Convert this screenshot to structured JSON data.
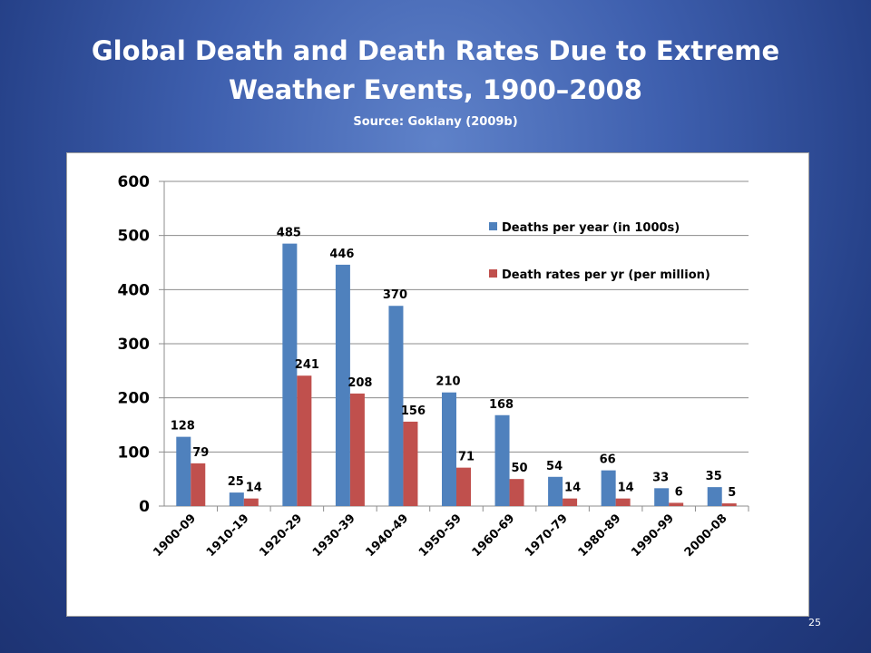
{
  "slide": {
    "title_line1": "Global Death and Death Rates Due to Extreme",
    "title_line2": "Weather Events, 1900–2008",
    "subtitle": "Source:  Goklany (2009b)",
    "page_number": "25"
  },
  "chart_data": {
    "type": "bar",
    "categories": [
      "1900-09",
      "1910-19",
      "1920-29",
      "1930-39",
      "1940-49",
      "1950-59",
      "1960-69",
      "1970-79",
      "1980-89",
      "1990-99",
      "2000-08"
    ],
    "series": [
      {
        "name": "Deaths per year (in 1000s)",
        "values": [
          128,
          25,
          485,
          446,
          370,
          210,
          168,
          54,
          66,
          33,
          35
        ],
        "labels": [
          "128",
          "25",
          "485",
          "446",
          "370",
          "210",
          "168",
          "54",
          "66",
          "33",
          "35"
        ],
        "color": "#4f81bd"
      },
      {
        "name": "Death rates per yr (per million)",
        "values": [
          79,
          14,
          241,
          208,
          156,
          71,
          50,
          14,
          14,
          6,
          5
        ],
        "labels": [
          "79",
          "14",
          "241",
          "208",
          "156",
          "71",
          "50",
          "14",
          "14",
          "6",
          "5"
        ],
        "color": "#c0504d"
      }
    ],
    "ylim": [
      0,
      600
    ],
    "yticks": [
      "0",
      "100",
      "200",
      "300",
      "400",
      "500",
      "600"
    ],
    "grid": true,
    "legend_position": "top-right"
  }
}
